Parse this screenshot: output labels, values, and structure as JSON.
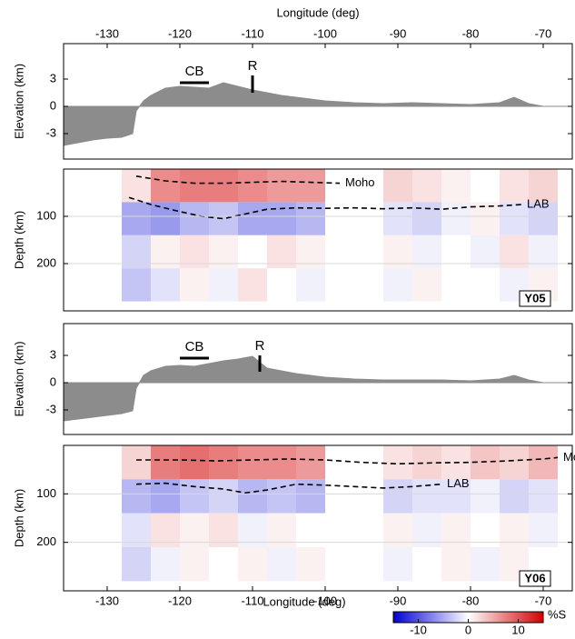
{
  "chart_data": [
    {
      "type": "area",
      "ylabel": "Elevation (km)",
      "xlabel": "Longitude (deg)",
      "xaxis": "top",
      "xlim": [
        -136,
        -66
      ],
      "xticks": [
        -130,
        -120,
        -110,
        -100,
        -90,
        -80,
        -70
      ],
      "ylim": [
        -5.8,
        6.9
      ],
      "yticks": [
        3,
        0,
        -3
      ],
      "color": "#8c8c8c",
      "x": [
        -136,
        -134,
        -132,
        -130,
        -128,
        -126.5,
        -126,
        -125,
        -124,
        -122,
        -120,
        -118,
        -116,
        -114,
        -112,
        -110,
        -108,
        -106,
        -104,
        -102,
        -100,
        -96,
        -92,
        -88,
        -84,
        -80,
        -76,
        -74,
        -72,
        -70,
        -66
      ],
      "values": [
        -4.3,
        -4.0,
        -3.7,
        -3.5,
        -3.4,
        -3.0,
        -0.5,
        0.6,
        1.2,
        2.0,
        2.2,
        2.1,
        2.0,
        2.6,
        2.2,
        1.8,
        1.5,
        1.2,
        1.0,
        0.8,
        0.6,
        0.4,
        0.3,
        0.4,
        0.3,
        0.2,
        0.4,
        1.0,
        0.3,
        0,
        0
      ],
      "annotations": [
        {
          "text": "CB",
          "x": [
            -120,
            -116
          ],
          "y": 2.6
        },
        {
          "text": "R",
          "x": -110,
          "y": [
            1.5,
            3.4
          ]
        }
      ]
    },
    {
      "type": "heatmap",
      "ylabel": "Depth (km)",
      "label": "Y05",
      "xlim": [
        -136,
        -66
      ],
      "ylim": [
        300,
        0
      ],
      "yticks": [
        100,
        200
      ],
      "grid": true,
      "clim": [
        -15,
        15
      ],
      "x_bins": [
        -128,
        -124,
        -120,
        -116,
        -112,
        -108,
        -104,
        -100,
        -96,
        -92,
        -88,
        -84,
        -80,
        -76,
        -72,
        -68
      ],
      "y_bins": [
        0,
        70,
        140,
        210,
        280
      ],
      "values": [
        [
          2,
          8,
          9,
          9,
          8,
          7,
          7,
          null,
          null,
          3,
          2,
          1,
          0,
          2,
          3
        ],
        [
          -6,
          -7,
          -5,
          -4,
          -6,
          -6,
          -5,
          null,
          null,
          -2,
          -3,
          -1,
          1,
          -2,
          -3
        ],
        [
          -3,
          1,
          2,
          1,
          0,
          2,
          1,
          null,
          null,
          1,
          -1,
          0,
          -1,
          2,
          -1
        ],
        [
          -4,
          -2,
          1,
          -1,
          2,
          0,
          -1,
          null,
          null,
          -1,
          1,
          null,
          0,
          -1,
          1
        ]
      ],
      "series": [
        {
          "name": "Moho",
          "color": "#000000",
          "x": [
            -126,
            -122,
            -118,
            -114,
            -110,
            -106,
            -102,
            -98
          ],
          "values": [
            15,
            25,
            30,
            30,
            28,
            26,
            28,
            30
          ]
        },
        {
          "name": "LAB",
          "color": "#000000",
          "x": [
            -127,
            -124,
            -120,
            -117,
            -114,
            -111,
            -108,
            -104,
            -100,
            -96,
            -92,
            -88,
            -84,
            -80,
            -76,
            -73
          ],
          "values": [
            60,
            75,
            90,
            100,
            105,
            95,
            85,
            82,
            83,
            82,
            84,
            82,
            85,
            80,
            78,
            75
          ]
        }
      ]
    },
    {
      "type": "area",
      "ylabel": "Elevation (km)",
      "xlim": [
        -136,
        -66
      ],
      "ylim": [
        -5.7,
        6.5
      ],
      "yticks": [
        3,
        0,
        -3
      ],
      "color": "#8c8c8c",
      "x": [
        -136,
        -134,
        -132,
        -130,
        -128,
        -126.5,
        -126,
        -125,
        -124,
        -122,
        -120,
        -118,
        -116,
        -114,
        -112,
        -110,
        -108,
        -106,
        -104,
        -102,
        -100,
        -96,
        -92,
        -88,
        -84,
        -80,
        -76,
        -74,
        -72,
        -70,
        -66
      ],
      "values": [
        -4.2,
        -4.0,
        -3.8,
        -3.6,
        -3.4,
        -3.1,
        -0.6,
        0.8,
        1.3,
        1.8,
        1.9,
        1.8,
        2.1,
        2.4,
        2.6,
        2.9,
        1.6,
        1.3,
        1.0,
        0.8,
        0.6,
        0.4,
        0.3,
        0.3,
        0.3,
        0.2,
        0.4,
        0.8,
        0.3,
        0,
        0
      ],
      "annotations": [
        {
          "text": "CB",
          "x": [
            -120,
            -116
          ],
          "y": 2.7
        },
        {
          "text": "R",
          "x": -109,
          "y": [
            1.2,
            3.0
          ]
        }
      ]
    },
    {
      "type": "heatmap",
      "ylabel": "Depth (km)",
      "label": "Y06",
      "xlabel": "Longitude (deg)",
      "xaxis": "bottom",
      "xlim": [
        -136,
        -66
      ],
      "xticks": [
        -130,
        -120,
        -110,
        -100,
        -90,
        -80,
        -70
      ],
      "ylim": [
        300,
        0
      ],
      "yticks": [
        100,
        200
      ],
      "grid": true,
      "clim": [
        -15,
        15
      ],
      "x_bins": [
        -128,
        -124,
        -120,
        -116,
        -112,
        -108,
        -104,
        -100,
        -96,
        -92,
        -88,
        -84,
        -80,
        -76,
        -72,
        -68
      ],
      "y_bins": [
        0,
        70,
        140,
        210,
        280
      ],
      "values": [
        [
          3,
          9,
          10,
          9,
          8,
          8,
          7,
          null,
          null,
          2,
          3,
          2,
          4,
          3,
          5
        ],
        [
          -5,
          -6,
          -4,
          -3,
          -5,
          -4,
          -5,
          null,
          null,
          -3,
          -2,
          -2,
          -1,
          -3,
          -2
        ],
        [
          -2,
          2,
          1,
          2,
          -1,
          1,
          0,
          null,
          null,
          1,
          -1,
          1,
          0,
          1,
          -1
        ],
        [
          -3,
          -1,
          1,
          0,
          1,
          -1,
          1,
          null,
          null,
          -1,
          0,
          1,
          -1,
          1,
          0
        ]
      ],
      "series": [
        {
          "name": "Moho",
          "color": "#000000",
          "x": [
            -126,
            -120,
            -115,
            -110,
            -105,
            -100,
            -95,
            -90,
            -85,
            -80,
            -75,
            -70,
            -68
          ],
          "values": [
            30,
            30,
            32,
            30,
            28,
            30,
            35,
            38,
            36,
            35,
            32,
            28,
            25
          ]
        },
        {
          "name": "LAB",
          "color": "#000000",
          "x": [
            -126,
            -122,
            -118,
            -114,
            -111,
            -108,
            -104,
            -100,
            -96,
            -92,
            -88,
            -84
          ],
          "values": [
            80,
            78,
            85,
            90,
            98,
            92,
            80,
            82,
            85,
            88,
            85,
            80
          ]
        }
      ],
      "colorbar": {
        "label": "%S",
        "ticks": [
          -10,
          0,
          10
        ]
      }
    }
  ]
}
